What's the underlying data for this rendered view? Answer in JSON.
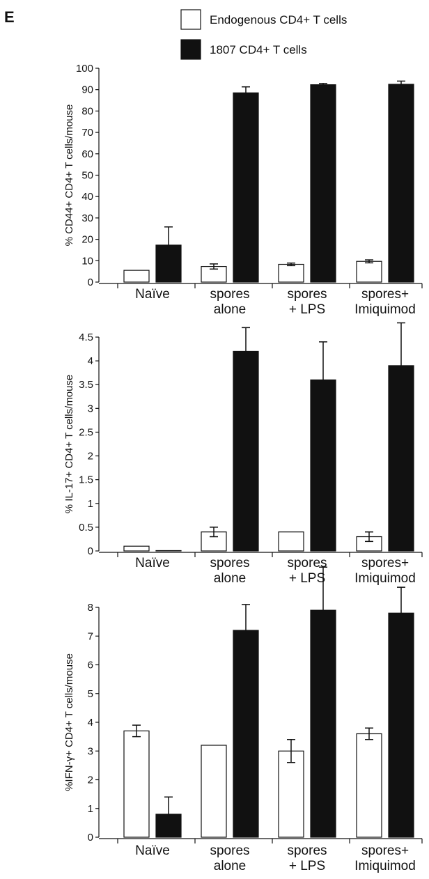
{
  "panel_label": "E",
  "legend": [
    {
      "label": "Endogenous CD4+ T cells",
      "fill": "#ffffff"
    },
    {
      "label": "1807 CD4+ T cells",
      "fill": "#111111"
    }
  ],
  "chart_data": [
    {
      "type": "bar",
      "categories": [
        [
          "Naïve"
        ],
        [
          "spores",
          "alone"
        ],
        [
          "spores",
          "+ LPS"
        ],
        [
          "spores+",
          "Imiquimod"
        ]
      ],
      "ylabel": "% CD44+ CD4+ T cells/mouse",
      "ylim": [
        0,
        100
      ],
      "yticks": [
        "0",
        "10",
        "20",
        "30",
        "40",
        "50",
        "60",
        "70",
        "80",
        "90",
        "100"
      ],
      "series": [
        {
          "name": "Endogenous CD4+ T cells",
          "color": "#ffffff",
          "values": [
            5.5,
            7.3,
            8.3,
            9.7
          ],
          "errors": [
            0,
            1.2,
            0.6,
            0.7
          ]
        },
        {
          "name": "1807 CD4+ T cells",
          "color": "#111111",
          "values": [
            17.3,
            88.5,
            92.3,
            92.5
          ],
          "errors": [
            8.5,
            2.8,
            0.6,
            1.5
          ]
        }
      ],
      "grid": false
    },
    {
      "type": "bar",
      "categories": [
        [
          "Naïve"
        ],
        [
          "spores",
          "alone"
        ],
        [
          "spores",
          "+ LPS"
        ],
        [
          "spores+",
          "Imiquimod"
        ]
      ],
      "ylabel": "% IL-17+ CD4+ T cells/mouse",
      "ylim": [
        0,
        4.5
      ],
      "yticks": [
        "0",
        "0.5",
        "1",
        "1.5",
        "2",
        "2.5",
        "3",
        "3.5",
        "4",
        "4.5"
      ],
      "series": [
        {
          "name": "Endogenous CD4+ T cells",
          "color": "#ffffff",
          "values": [
            0.1,
            0.4,
            0.4,
            0.3
          ],
          "errors": [
            0,
            0.1,
            0,
            0.1
          ]
        },
        {
          "name": "1807 CD4+ T cells",
          "color": "#111111",
          "values": [
            0,
            4.2,
            3.6,
            3.9
          ],
          "errors": [
            0,
            0.5,
            0.8,
            0.9
          ]
        }
      ],
      "grid": false
    },
    {
      "type": "bar",
      "categories": [
        [
          "Naïve"
        ],
        [
          "spores",
          "alone"
        ],
        [
          "spores",
          "+ LPS"
        ],
        [
          "spores+",
          "Imiquimod"
        ]
      ],
      "ylabel": "%IFN-γ+ CD4+ T cells/mouse",
      "ylim": [
        0,
        8
      ],
      "yticks": [
        "0",
        "1",
        "2",
        "3",
        "4",
        "5",
        "6",
        "7",
        "8"
      ],
      "series": [
        {
          "name": "Endogenous CD4+ T cells",
          "color": "#ffffff",
          "values": [
            3.7,
            3.2,
            3.0,
            3.6
          ],
          "errors": [
            0.2,
            0,
            0.4,
            0.2
          ]
        },
        {
          "name": "1807 CD4+ T cells",
          "color": "#111111",
          "values": [
            0.8,
            7.2,
            7.9,
            7.8
          ],
          "errors": [
            0.6,
            0.9,
            1.5,
            0.9
          ]
        }
      ],
      "grid": false
    }
  ]
}
